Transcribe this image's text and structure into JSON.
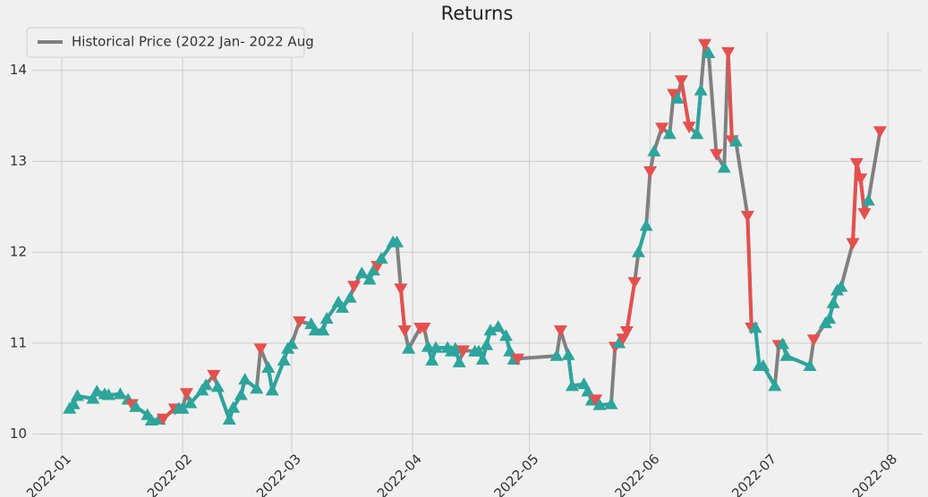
{
  "chart_data": {
    "type": "line",
    "title": "Returns",
    "x": [
      2,
      3,
      4,
      8,
      9,
      11,
      12,
      15,
      17,
      18,
      19,
      22,
      23,
      25,
      26,
      29,
      30,
      31,
      32,
      33,
      36,
      37,
      39,
      40,
      43,
      44,
      46,
      47,
      50,
      51,
      53,
      54,
      57,
      58,
      59,
      61,
      64,
      65,
      67,
      68,
      71,
      72,
      74,
      75,
      77,
      79,
      80,
      81,
      82,
      85,
      86,
      87,
      88,
      89,
      92,
      93,
      94,
      95,
      96,
      99,
      100,
      101,
      102,
      103,
      106,
      107,
      108,
      109,
      110,
      112,
      114,
      115,
      116,
      117,
      127,
      128,
      130,
      131,
      134,
      135,
      136,
      137,
      138,
      141,
      142,
      143,
      144,
      145,
      147,
      148,
      150,
      151,
      152,
      154,
      156,
      157,
      158,
      159,
      161,
      163,
      164,
      165,
      166,
      168,
      170,
      171,
      172,
      173,
      176,
      177,
      178,
      179,
      180,
      183,
      184,
      185,
      186,
      192,
      193,
      196,
      197,
      198,
      199,
      200,
      203,
      204,
      205,
      206,
      207,
      210
    ],
    "series": [
      {
        "name": "Historical Price (2022 Jan- 2022 Aug",
        "color": "#808080",
        "values": [
          10.28,
          10.33,
          10.42,
          10.39,
          10.47,
          10.44,
          10.43,
          10.44,
          10.38,
          10.33,
          10.3,
          10.21,
          10.15,
          10.16,
          10.17,
          10.28,
          10.28,
          10.28,
          10.45,
          10.34,
          10.48,
          10.54,
          10.65,
          10.52,
          10.16,
          10.29,
          10.43,
          10.6,
          10.5,
          10.94,
          10.73,
          10.48,
          10.81,
          10.94,
          10.99,
          11.24,
          11.21,
          11.14,
          11.14,
          11.27,
          11.45,
          11.39,
          11.5,
          11.63,
          11.77,
          11.7,
          11.8,
          11.85,
          11.93,
          12.11,
          12.11,
          11.6,
          11.14,
          10.94,
          11.17,
          11.17,
          10.96,
          10.81,
          10.95,
          10.95,
          10.91,
          10.94,
          10.79,
          10.92,
          10.91,
          10.91,
          10.82,
          10.98,
          11.14,
          11.18,
          11.08,
          10.91,
          10.82,
          10.83,
          10.86,
          11.14,
          10.87,
          10.53,
          10.55,
          10.47,
          10.37,
          10.38,
          10.32,
          10.33,
          10.96,
          11.0,
          11.05,
          11.13,
          11.67,
          12.0,
          12.29,
          12.89,
          13.11,
          13.37,
          13.3,
          13.74,
          13.69,
          13.89,
          13.38,
          13.3,
          13.78,
          14.29,
          14.19,
          13.08,
          12.93,
          14.2,
          13.23,
          13.22,
          12.4,
          11.17,
          11.17,
          10.75,
          10.75,
          10.53,
          10.98,
          10.99,
          10.86,
          10.75,
          11.04,
          11.22,
          11.27,
          11.44,
          11.58,
          11.62,
          12.1,
          12.98,
          12.81,
          12.43,
          12.57,
          13.33
        ],
        "markers": [
          "^",
          "^",
          "^",
          "^",
          "^",
          "^",
          "^",
          "^",
          "^",
          "v",
          "^",
          "^",
          "^",
          "^",
          "v",
          "v",
          "^",
          "^",
          "v",
          "^",
          "^",
          "^",
          "v",
          "^",
          "^",
          "^",
          "^",
          "^",
          "^",
          "v",
          "^",
          "^",
          "^",
          "^",
          "^",
          "v",
          "^",
          "^",
          "^",
          "^",
          "^",
          "^",
          "^",
          "v",
          "^",
          "^",
          "^",
          "v",
          "^",
          "^",
          "^",
          "v",
          "v",
          "^",
          "v",
          "v",
          "^",
          "^",
          "^",
          "^",
          "^",
          "^",
          "^",
          "v",
          "^",
          "^",
          "^",
          "^",
          "^",
          "^",
          "^",
          "^",
          "^",
          "v",
          "^",
          "v",
          "^",
          "^",
          "^",
          "^",
          "^",
          "v",
          "^",
          "^",
          "v",
          "^",
          "v",
          "v",
          "v",
          "^",
          "^",
          "v",
          "^",
          "v",
          "^",
          "v",
          "^",
          "v",
          "v",
          "^",
          "^",
          "v",
          "^",
          "v",
          "^",
          "v",
          "v",
          "^",
          "v",
          "v",
          "^",
          "^",
          "^",
          "^",
          "v",
          "^",
          "^",
          "^",
          "v",
          "^",
          "^",
          "^",
          "^",
          "^",
          "v",
          "v",
          "v",
          "v",
          "^",
          "v"
        ]
      }
    ],
    "up_color": "#2ca59c",
    "down_color": "#e5504f",
    "xlim": [
      -7.6,
      220.7
    ],
    "xticks": [
      {
        "value": 0,
        "label": "2022-01"
      },
      {
        "value": 31,
        "label": "2022-02"
      },
      {
        "value": 59,
        "label": "2022-03"
      },
      {
        "value": 90,
        "label": "2022-04"
      },
      {
        "value": 120,
        "label": "2022-05"
      },
      {
        "value": 151,
        "label": "2022-06"
      },
      {
        "value": 181,
        "label": "2022-07"
      },
      {
        "value": 212,
        "label": "2022-08"
      }
    ],
    "ylim": [
      9.79,
      14.42
    ],
    "yticks": [
      10,
      11,
      12,
      13,
      14
    ],
    "grid": true,
    "legend": "upper left"
  }
}
